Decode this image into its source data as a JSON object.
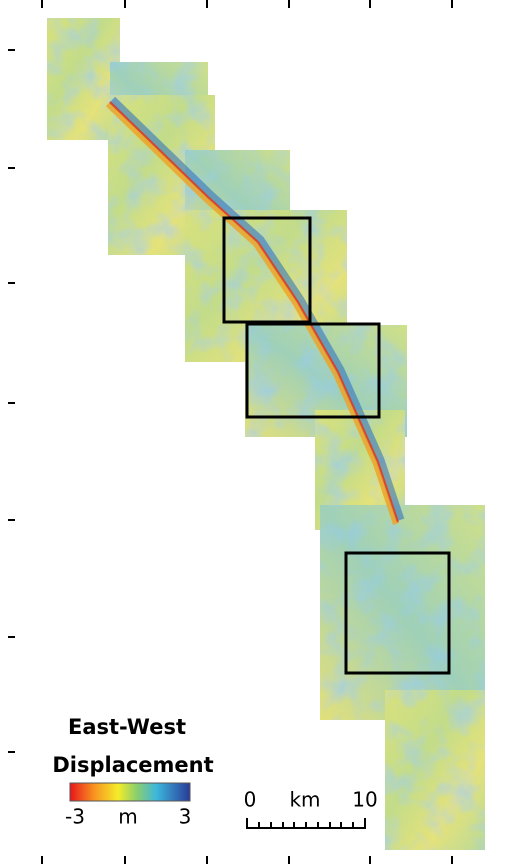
{
  "legend": {
    "title_line1": "East-West",
    "title_line2": "Displacement",
    "min_label": -3,
    "unit": "m",
    "max_label": 3
  },
  "scale_bar": {
    "start": 0,
    "unit": "km",
    "end": 10
  }
}
